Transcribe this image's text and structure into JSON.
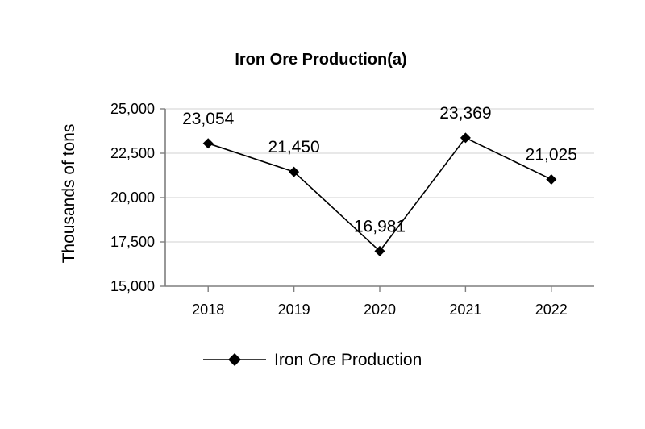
{
  "chart_data": {
    "type": "line",
    "title": "Iron Ore Production(a)",
    "xlabel": "",
    "ylabel": "Thousands of tons",
    "categories": [
      "2018",
      "2019",
      "2020",
      "2021",
      "2022"
    ],
    "series": [
      {
        "name": "Iron Ore Production",
        "values": [
          23054,
          21450,
          16981,
          23369,
          21025
        ],
        "labels": [
          "23,054",
          "21,450",
          "16,981",
          "23,369",
          "21,025"
        ],
        "color": "#000000",
        "marker": "diamond"
      }
    ],
    "ylim": [
      15000,
      25000
    ],
    "yticks": [
      15000,
      17500,
      20000,
      22500,
      25000
    ],
    "ytick_labels": [
      "15,000",
      "17,500",
      "20,000",
      "22,500",
      "25,000"
    ],
    "grid": true,
    "grid_color": "#e0e0e0",
    "axis_color": "#7f7f7f",
    "legend_position": "bottom"
  }
}
